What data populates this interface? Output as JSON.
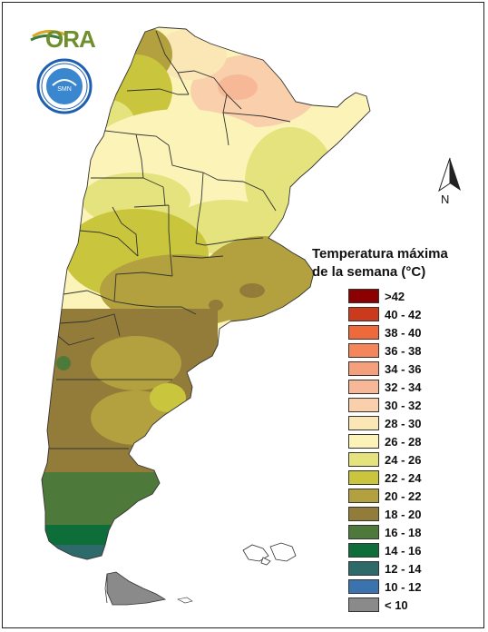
{
  "logo": {
    "text": "ORA",
    "color": "#6f8f2e"
  },
  "seal": {
    "name": "servicio-meteorologico-seal",
    "ring_color": "#1f5fb0"
  },
  "north_arrow": {
    "label": "N"
  },
  "legend": {
    "title_line1": "Temperatura máxima",
    "title_line2": "de la semana (°C)",
    "items": [
      {
        "label": ">42",
        "color": "#8b0000"
      },
      {
        "label": "40 - 42",
        "color": "#cc3a1e"
      },
      {
        "label": "38 - 40",
        "color": "#ef6a3a"
      },
      {
        "label": "36 - 38",
        "color": "#f5865a"
      },
      {
        "label": "34 - 36",
        "color": "#f4a07c"
      },
      {
        "label": "32 - 34",
        "color": "#f7b898"
      },
      {
        "label": "30 - 32",
        "color": "#f9cfac"
      },
      {
        "label": "28 - 30",
        "color": "#fbe7b6"
      },
      {
        "label": "26 - 28",
        "color": "#fbf3b8"
      },
      {
        "label": "24 - 26",
        "color": "#e5e37d"
      },
      {
        "label": "22 - 24",
        "color": "#c9c63d"
      },
      {
        "label": "20 - 22",
        "color": "#b2a13e"
      },
      {
        "label": "18 - 20",
        "color": "#937b3a"
      },
      {
        "label": "16 - 18",
        "color": "#4d7a3a"
      },
      {
        "label": "14 - 16",
        "color": "#0e6e3a"
      },
      {
        "label": "12 - 14",
        "color": "#2e6a6a"
      },
      {
        "label": "10 - 12",
        "color": "#3a73ad"
      },
      {
        "label": "< 10",
        "color": "#8a8a8a"
      }
    ]
  }
}
